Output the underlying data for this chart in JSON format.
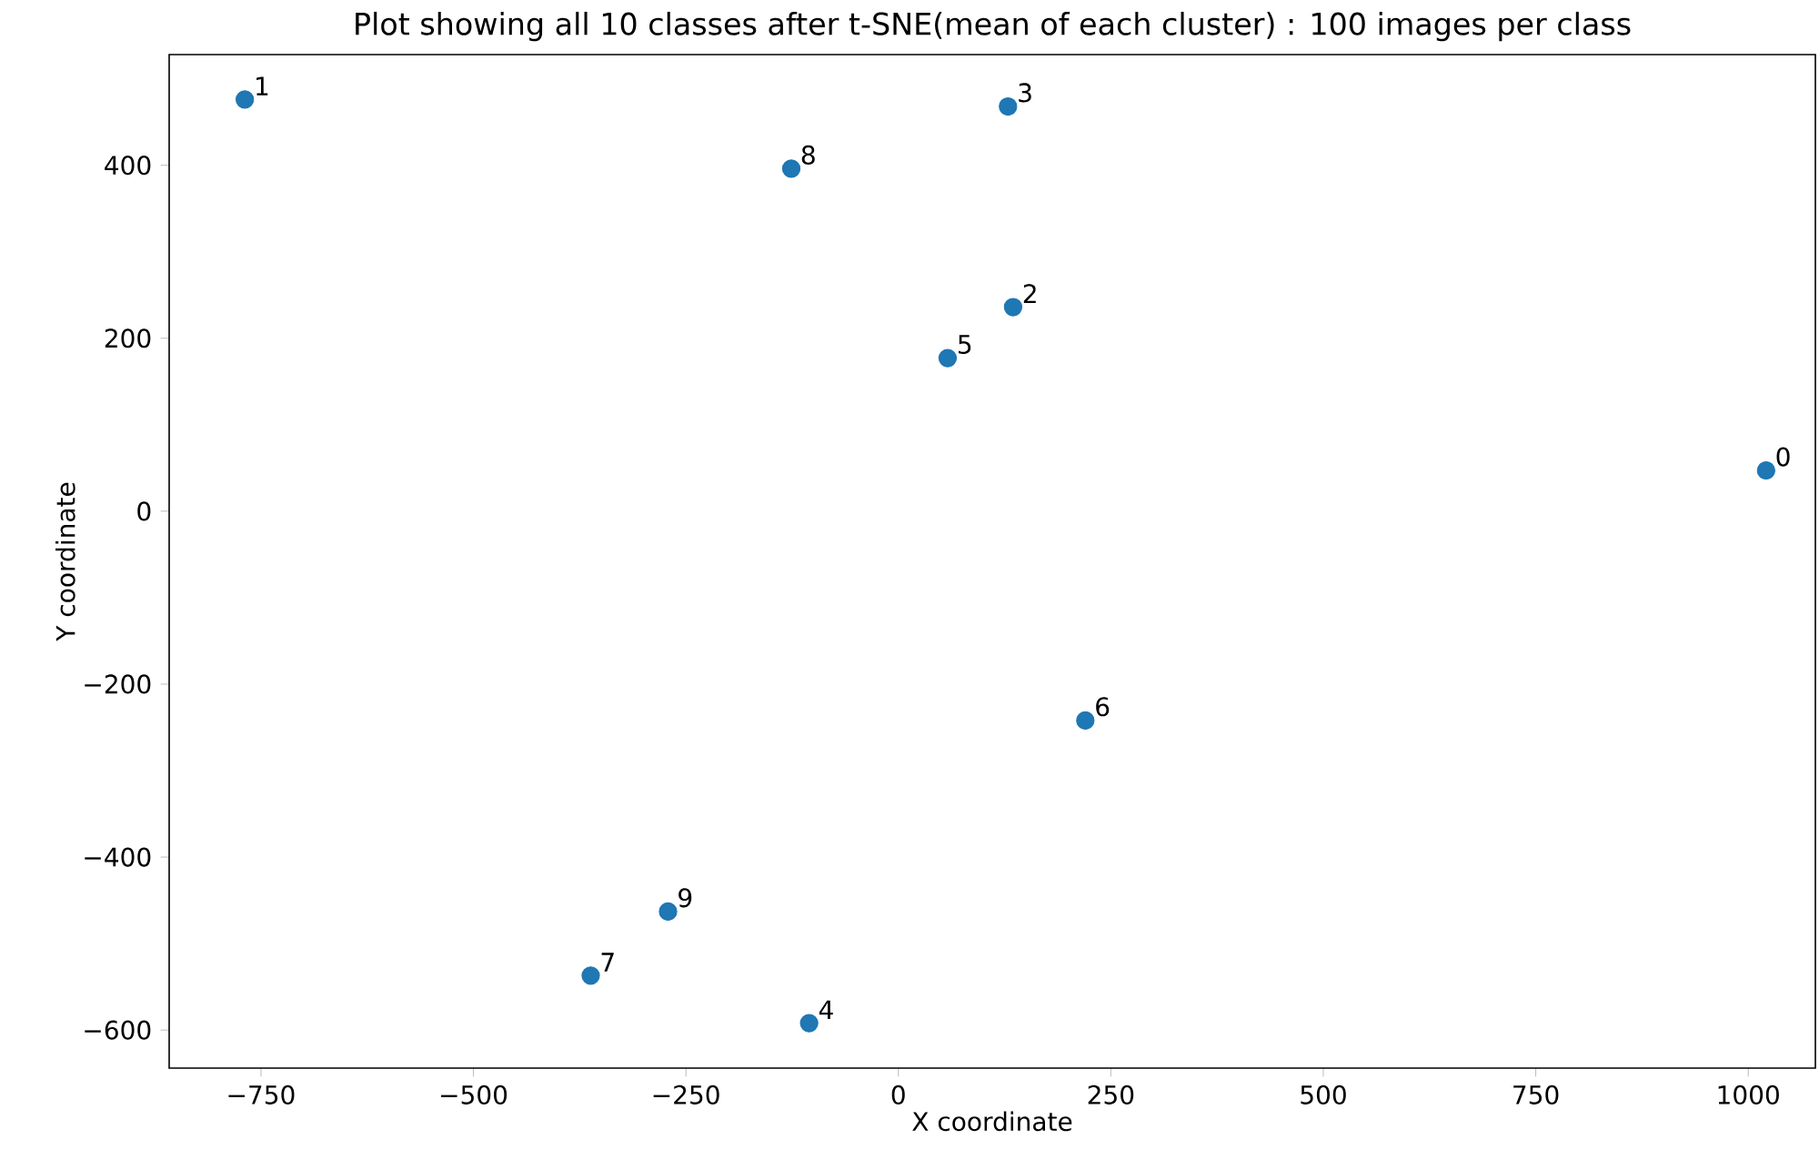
{
  "chart_data": {
    "type": "scatter",
    "title": "Plot showing all 10 classes after t-SNE(mean of each cluster) : 100 images per class",
    "xlabel": "X coordinate",
    "ylabel": "Y coordinate",
    "x": [
      1021,
      -769,
      135,
      129,
      -105,
      58,
      220,
      -362,
      -126,
      -271
    ],
    "values": [
      47,
      476,
      236,
      468,
      -592,
      177,
      -242,
      -537,
      396,
      -463
    ],
    "color": "#1f77b4",
    "xlim": [
      -858,
      1079
    ],
    "ylim": [
      -644,
      528
    ],
    "xticks": [
      {
        "value": -750,
        "label": "−750"
      },
      {
        "value": -500,
        "label": "−500"
      },
      {
        "value": -250,
        "label": "−250"
      },
      0,
      250,
      500,
      750,
      1000
    ],
    "yticks": [
      {
        "value": -600,
        "label": "−600"
      },
      {
        "value": -400,
        "label": "−400"
      },
      {
        "value": -200,
        "label": "−200"
      },
      0,
      200,
      400
    ],
    "annotations": [
      {
        "text": "0",
        "x": 1021,
        "y": 47
      },
      {
        "text": "1",
        "x": -769,
        "y": 476
      },
      {
        "text": "2",
        "x": 135,
        "y": 236
      },
      {
        "text": "3",
        "x": 129,
        "y": 468
      },
      {
        "text": "4",
        "x": -105,
        "y": -592
      },
      {
        "text": "5",
        "x": 58,
        "y": 177
      },
      {
        "text": "6",
        "x": 220,
        "y": -242
      },
      {
        "text": "7",
        "x": -362,
        "y": -537
      },
      {
        "text": "8",
        "x": -126,
        "y": 396
      },
      {
        "text": "9",
        "x": -271,
        "y": -463
      }
    ]
  }
}
